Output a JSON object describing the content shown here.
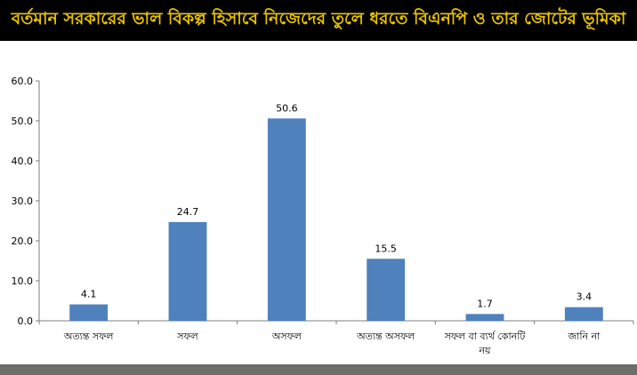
{
  "chart_data": {
    "type": "bar",
    "title": "বর্তমান সরকারের ভাল বিকল্প হিসাবে নিজেদের তুলে ধরতে বিএনপি ও তার জোটের ভূমিকা",
    "categories": [
      "অত্যন্ত সফল",
      "সফল",
      "অসফল",
      "অত্যন্ত অসফল",
      "সফল বা ব্যর্থ কোনটি নয়",
      "জানি না"
    ],
    "values": [
      4.1,
      24.7,
      50.6,
      15.5,
      1.7,
      3.4
    ],
    "value_labels": [
      "4.1",
      "24.7",
      "50.6",
      "15.5",
      "1.7",
      "3.4"
    ],
    "ylim": [
      0,
      60
    ],
    "yticks": [
      "0.0",
      "10.0",
      "20.0",
      "30.0",
      "40.0",
      "50.0",
      "60.0"
    ],
    "grid": false,
    "legend": "none",
    "bar_color": "#4f81bd",
    "title_color": "#e8c200",
    "title_background": "#000000"
  }
}
